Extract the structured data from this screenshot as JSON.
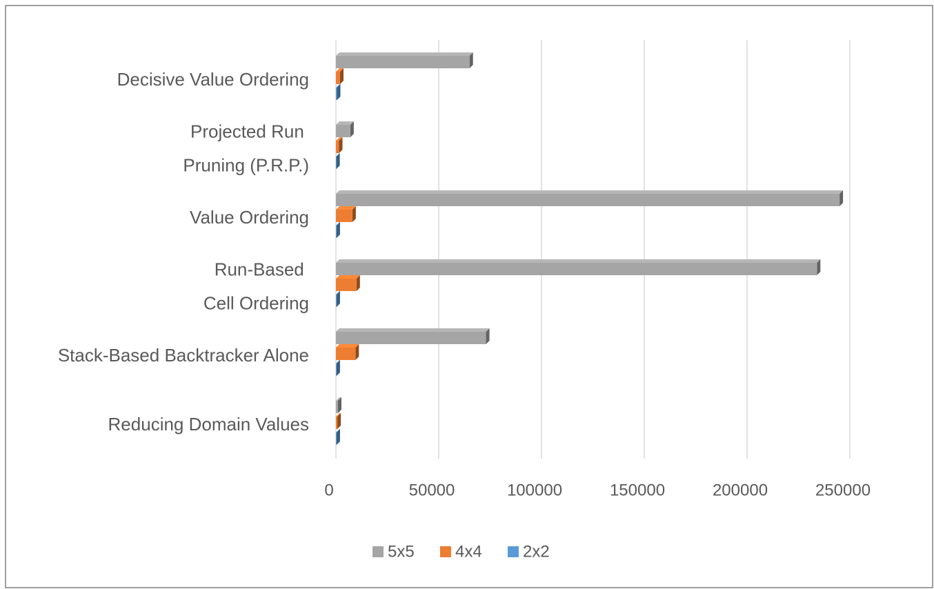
{
  "chart_data": {
    "type": "bar",
    "orientation": "horizontal",
    "categories": [
      "Reducing Domain Values",
      "Stack-Based Backtracker Alone",
      "Run-Based \nCell Ordering",
      "Value Ordering",
      "Projected Run \nPruning (P.R.P.)",
      "Decisive Value Ordering"
    ],
    "series": [
      {
        "name": "5x5",
        "color": "#a5a5a5",
        "values": [
          1000,
          73000,
          234000,
          245000,
          7000,
          65000
        ]
      },
      {
        "name": "4x4",
        "color": "#ed7d31",
        "values": [
          700,
          9500,
          10000,
          8000,
          1500,
          2000
        ]
      },
      {
        "name": "2x2",
        "color": "#5b9bd5",
        "values": [
          300,
          300,
          300,
          300,
          200,
          500
        ]
      }
    ],
    "xlim": [
      0,
      250000
    ],
    "xticks": [
      0,
      50000,
      100000,
      150000,
      200000,
      250000
    ],
    "grid": true,
    "legend": "bottom"
  }
}
